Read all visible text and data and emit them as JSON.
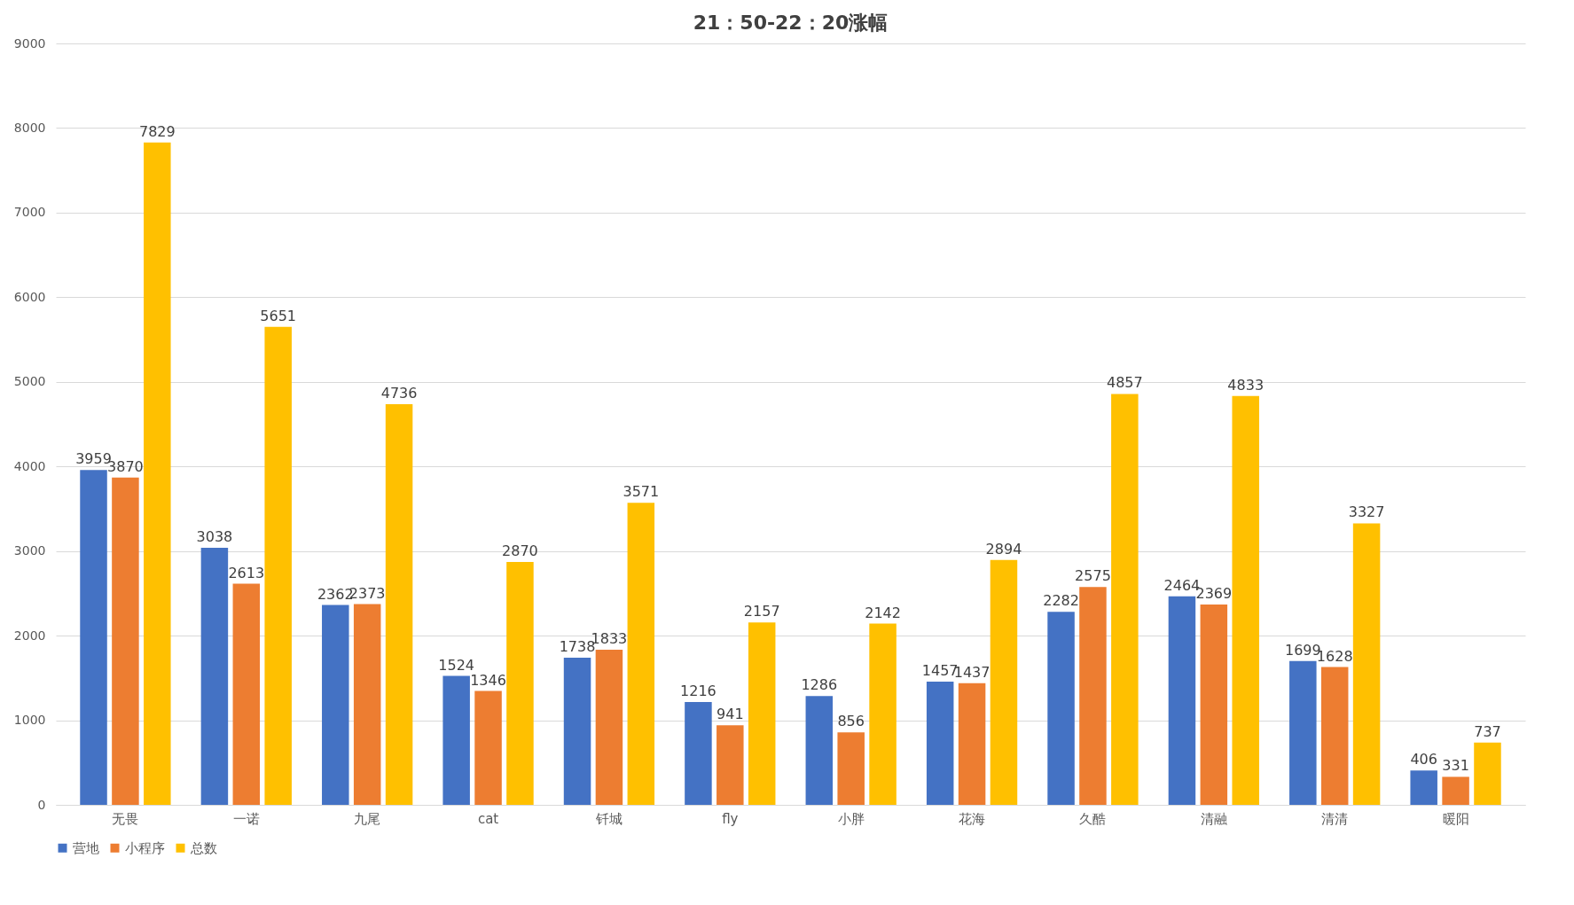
{
  "chart_data": {
    "type": "bar",
    "title": "21：50-22：20涨幅",
    "categories": [
      "无畏",
      "一诺",
      "九尾",
      "cat",
      "钎城",
      "fly",
      "小胖",
      "花海",
      "久酷",
      "清融",
      "清清",
      "暖阳"
    ],
    "series": [
      {
        "name": "营地",
        "color": "#4472c4",
        "values": [
          3959,
          3038,
          2362,
          1524,
          1738,
          1216,
          1286,
          1457,
          2282,
          2464,
          1699,
          406
        ]
      },
      {
        "name": "小程序",
        "color": "#ed7d31",
        "values": [
          3870,
          2613,
          2373,
          1346,
          1833,
          941,
          856,
          1437,
          2575,
          2369,
          1628,
          331
        ]
      },
      {
        "name": "总数",
        "color": "#ffc000",
        "values": [
          7829,
          5651,
          4736,
          2870,
          3571,
          2157,
          2142,
          2894,
          4857,
          4833,
          3327,
          737
        ]
      }
    ],
    "ylim": [
      0,
      9000
    ],
    "yticks": [
      0,
      1000,
      2000,
      3000,
      4000,
      5000,
      6000,
      7000,
      8000,
      9000
    ],
    "grid": "y",
    "legend": "bottom",
    "data_labels": true
  }
}
